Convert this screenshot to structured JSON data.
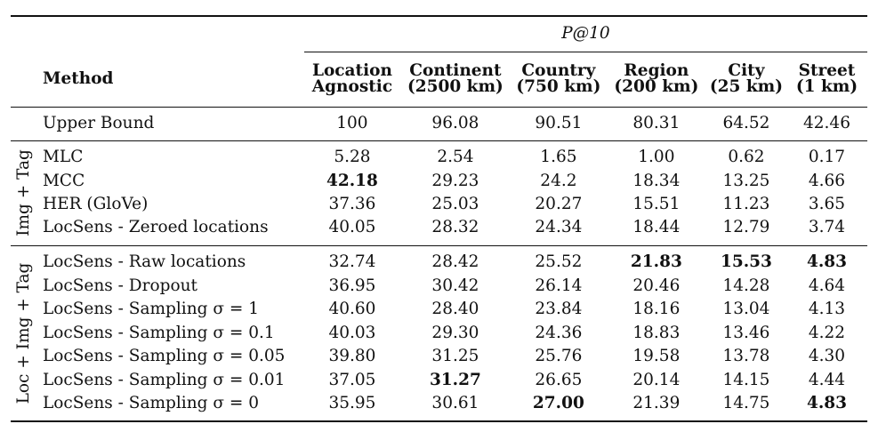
{
  "header": {
    "metric": "P@10",
    "method_label": "Method",
    "columns": [
      {
        "line1": "Location",
        "line2": "Agnostic"
      },
      {
        "line1": "Continent",
        "line2": "(2500 km)"
      },
      {
        "line1": "Country",
        "line2": "(750 km)"
      },
      {
        "line1": "Region",
        "line2": "(200 km)"
      },
      {
        "line1": "City",
        "line2": "(25 km)"
      },
      {
        "line1": "Street",
        "line2": "(1 km)"
      }
    ]
  },
  "upper_bound": {
    "method": "Upper Bound",
    "values": [
      "100",
      "96.08",
      "90.51",
      "80.31",
      "64.52",
      "42.46"
    ]
  },
  "groups": [
    {
      "label": "Img + Tag",
      "rows": [
        {
          "method": "MLC",
          "values": [
            "5.28",
            "2.54",
            "1.65",
            "1.00",
            "0.62",
            "0.17"
          ],
          "bold": []
        },
        {
          "method": "MCC",
          "values": [
            "42.18",
            "29.23",
            "24.2",
            "18.34",
            "13.25",
            "4.66"
          ],
          "bold": [
            0
          ]
        },
        {
          "method": "HER (GloVe)",
          "values": [
            "37.36",
            "25.03",
            "20.27",
            "15.51",
            "11.23",
            "3.65"
          ],
          "bold": []
        },
        {
          "method": "LocSens - Zeroed locations",
          "values": [
            "40.05",
            "28.32",
            "24.34",
            "18.44",
            "12.79",
            "3.74"
          ],
          "bold": []
        }
      ]
    },
    {
      "label": "Loc + Img + Tag",
      "rows": [
        {
          "method": "LocSens - Raw locations",
          "values": [
            "32.74",
            "28.42",
            "25.52",
            "21.83",
            "15.53",
            "4.83"
          ],
          "bold": [
            3,
            4,
            5
          ]
        },
        {
          "method": "LocSens - Dropout",
          "values": [
            "36.95",
            "30.42",
            "26.14",
            "20.46",
            "14.28",
            "4.64"
          ],
          "bold": []
        },
        {
          "method": "LocSens - Sampling σ = 1",
          "values": [
            "40.60",
            "28.40",
            "23.84",
            "18.16",
            "13.04",
            "4.13"
          ],
          "bold": []
        },
        {
          "method": "LocSens - Sampling σ = 0.1",
          "values": [
            "40.03",
            "29.30",
            "24.36",
            "18.83",
            "13.46",
            "4.22"
          ],
          "bold": []
        },
        {
          "method": "LocSens - Sampling σ = 0.05",
          "values": [
            "39.80",
            "31.25",
            "25.76",
            "19.58",
            "13.78",
            "4.30"
          ],
          "bold": []
        },
        {
          "method": "LocSens - Sampling σ = 0.01",
          "values": [
            "37.05",
            "31.27",
            "26.65",
            "20.14",
            "14.15",
            "4.44"
          ],
          "bold": [
            1
          ]
        },
        {
          "method": "LocSens - Sampling σ = 0",
          "values": [
            "35.95",
            "30.61",
            "27.00",
            "21.39",
            "14.75",
            "4.83"
          ],
          "bold": [
            2,
            5
          ]
        }
      ]
    }
  ]
}
